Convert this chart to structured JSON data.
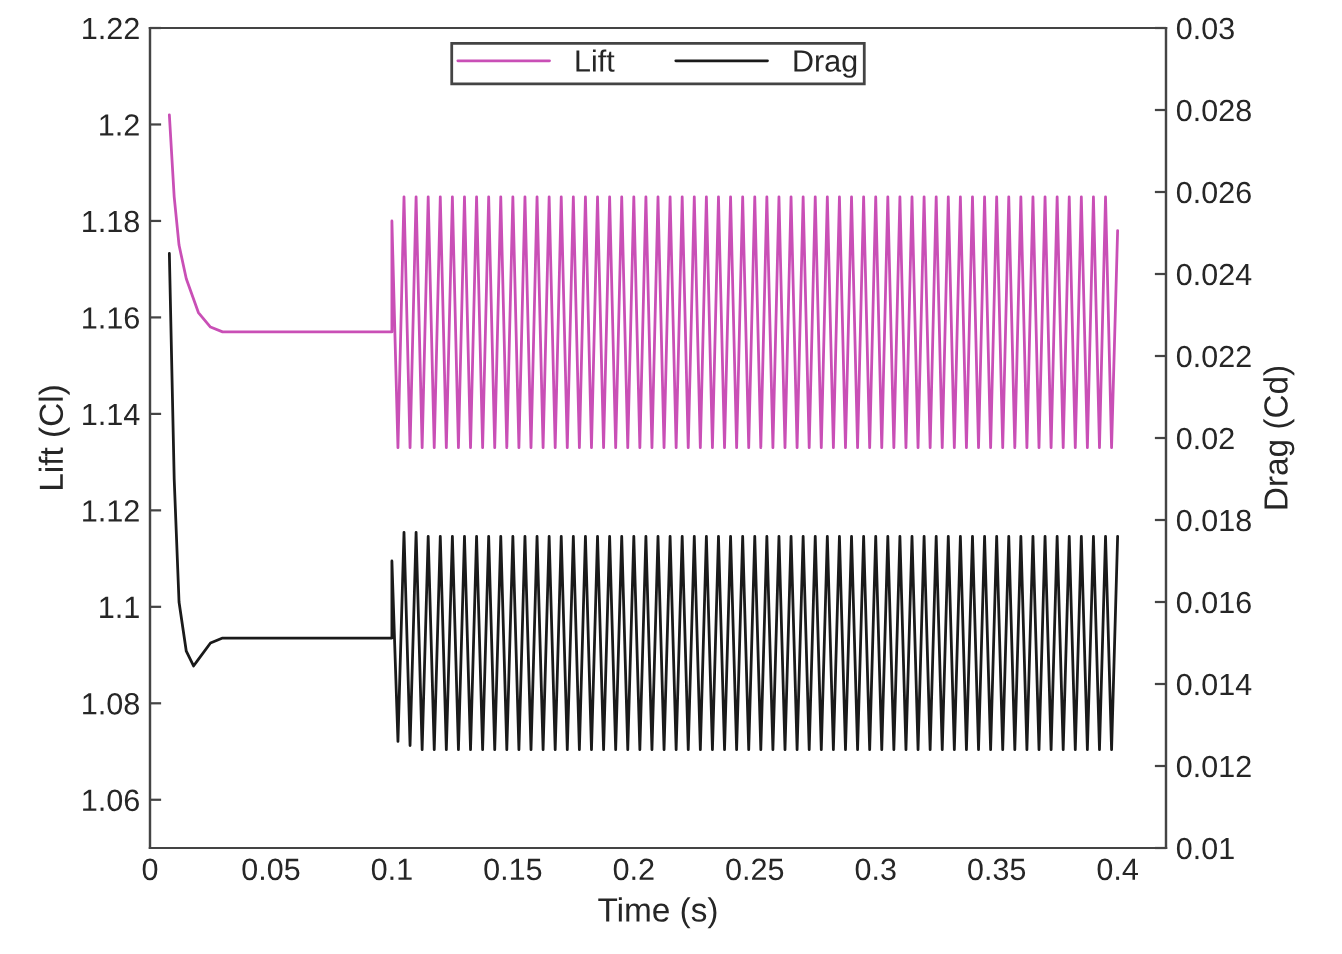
{
  "chart_data": {
    "type": "line",
    "xlabel": "Time (s)",
    "ylabel": "Lift (Cl)",
    "y2label": "Drag (Cd)",
    "xlim": [
      0,
      0.42
    ],
    "xticks": [
      0,
      0.05,
      0.1,
      0.15,
      0.2,
      0.25,
      0.3,
      0.35,
      0.4
    ],
    "ylim": [
      1.05,
      1.22
    ],
    "yticks": [
      1.06,
      1.08,
      1.1,
      1.12,
      1.14,
      1.16,
      1.18,
      1.2,
      1.22
    ],
    "y2lim": [
      0.01,
      0.03
    ],
    "y2ticks": [
      0.01,
      0.012,
      0.014,
      0.016,
      0.018,
      0.02,
      0.022,
      0.024,
      0.026,
      0.028,
      0.03
    ],
    "legend": "top",
    "grid": false,
    "marker": "none",
    "line_style": "solid",
    "series": [
      {
        "name": "Lift",
        "color": "#c94fb6",
        "x": [
          0.008,
          0.01,
          0.012,
          0.015,
          0.02,
          0.025,
          0.03,
          0.1,
          0.1,
          0.1025,
          0.105,
          0.1075,
          0.11,
          0.1125,
          0.115,
          0.1175,
          0.12,
          0.1225,
          0.125,
          0.1275,
          0.13,
          0.1325,
          0.135,
          0.1375,
          0.14,
          0.1425,
          0.145,
          0.1475,
          0.15,
          0.1525,
          0.155,
          0.1575,
          0.16,
          0.1625,
          0.165,
          0.1675,
          0.17,
          0.1725,
          0.175,
          0.1775,
          0.18,
          0.1825,
          0.185,
          0.1875,
          0.19,
          0.1925,
          0.195,
          0.1975,
          0.2,
          0.2025,
          0.205,
          0.2075,
          0.21,
          0.2125,
          0.215,
          0.2175,
          0.22,
          0.2225,
          0.225,
          0.2275,
          0.23,
          0.2325,
          0.235,
          0.2375,
          0.24,
          0.2425,
          0.245,
          0.2475,
          0.25,
          0.2525,
          0.255,
          0.2575,
          0.26,
          0.2625,
          0.265,
          0.2675,
          0.27,
          0.2725,
          0.275,
          0.2775,
          0.28,
          0.2825,
          0.285,
          0.2875,
          0.29,
          0.2925,
          0.295,
          0.2975,
          0.3,
          0.3025,
          0.305,
          0.3075,
          0.31,
          0.3125,
          0.315,
          0.3175,
          0.32,
          0.3225,
          0.325,
          0.3275,
          0.33,
          0.3325,
          0.335,
          0.3375,
          0.34,
          0.3425,
          0.345,
          0.3475,
          0.35,
          0.3525,
          0.355,
          0.3575,
          0.36,
          0.3625,
          0.365,
          0.3675,
          0.37,
          0.3725,
          0.375,
          0.3775,
          0.38,
          0.3825,
          0.385,
          0.3875,
          0.39,
          0.3925,
          0.395,
          0.3975,
          0.4
        ],
        "values": [
          1.202,
          1.185,
          1.175,
          1.168,
          1.161,
          1.158,
          1.157,
          1.157,
          1.18,
          1.133,
          1.185,
          1.133,
          1.185,
          1.133,
          1.185,
          1.133,
          1.185,
          1.133,
          1.185,
          1.133,
          1.185,
          1.133,
          1.185,
          1.133,
          1.185,
          1.133,
          1.185,
          1.133,
          1.185,
          1.133,
          1.185,
          1.133,
          1.185,
          1.133,
          1.185,
          1.133,
          1.185,
          1.133,
          1.185,
          1.133,
          1.185,
          1.133,
          1.185,
          1.133,
          1.185,
          1.133,
          1.185,
          1.133,
          1.185,
          1.133,
          1.185,
          1.133,
          1.185,
          1.133,
          1.185,
          1.133,
          1.185,
          1.133,
          1.185,
          1.133,
          1.185,
          1.133,
          1.185,
          1.133,
          1.185,
          1.133,
          1.185,
          1.133,
          1.185,
          1.133,
          1.185,
          1.133,
          1.185,
          1.133,
          1.185,
          1.133,
          1.185,
          1.133,
          1.185,
          1.133,
          1.185,
          1.133,
          1.185,
          1.133,
          1.185,
          1.133,
          1.185,
          1.133,
          1.185,
          1.133,
          1.185,
          1.133,
          1.185,
          1.133,
          1.185,
          1.133,
          1.185,
          1.133,
          1.185,
          1.133,
          1.185,
          1.133,
          1.185,
          1.133,
          1.185,
          1.133,
          1.185,
          1.133,
          1.185,
          1.133,
          1.185,
          1.133,
          1.185,
          1.133,
          1.185,
          1.133,
          1.185,
          1.133,
          1.185,
          1.133,
          1.185,
          1.133,
          1.185,
          1.133,
          1.185,
          1.133,
          1.185,
          1.133,
          1.178
        ]
      },
      {
        "name": "Drag",
        "color": "#1a1a1a",
        "axis": "y2",
        "x": [
          0.008,
          0.01,
          0.012,
          0.015,
          0.018,
          0.02,
          0.025,
          0.03,
          0.1,
          0.1,
          0.1025,
          0.105,
          0.1075,
          0.11,
          0.1125,
          0.115,
          0.1175,
          0.12,
          0.1225,
          0.125,
          0.1275,
          0.13,
          0.1325,
          0.135,
          0.1375,
          0.14,
          0.1425,
          0.145,
          0.1475,
          0.15,
          0.1525,
          0.155,
          0.1575,
          0.16,
          0.1625,
          0.165,
          0.1675,
          0.17,
          0.1725,
          0.175,
          0.1775,
          0.18,
          0.1825,
          0.185,
          0.1875,
          0.19,
          0.1925,
          0.195,
          0.1975,
          0.2,
          0.2025,
          0.205,
          0.2075,
          0.21,
          0.2125,
          0.215,
          0.2175,
          0.22,
          0.2225,
          0.225,
          0.2275,
          0.23,
          0.2325,
          0.235,
          0.2375,
          0.24,
          0.2425,
          0.245,
          0.2475,
          0.25,
          0.2525,
          0.255,
          0.2575,
          0.26,
          0.2625,
          0.265,
          0.2675,
          0.27,
          0.2725,
          0.275,
          0.2775,
          0.28,
          0.2825,
          0.285,
          0.2875,
          0.29,
          0.2925,
          0.295,
          0.2975,
          0.3,
          0.3025,
          0.305,
          0.3075,
          0.31,
          0.3125,
          0.315,
          0.3175,
          0.32,
          0.3225,
          0.325,
          0.3275,
          0.33,
          0.3325,
          0.335,
          0.3375,
          0.34,
          0.3425,
          0.345,
          0.3475,
          0.35,
          0.3525,
          0.355,
          0.3575,
          0.36,
          0.3625,
          0.365,
          0.3675,
          0.37,
          0.3725,
          0.375,
          0.3775,
          0.38,
          0.3825,
          0.385,
          0.3875,
          0.39,
          0.3925,
          0.395,
          0.3975,
          0.4
        ],
        "values": [
          0.0245,
          0.019,
          0.016,
          0.0148,
          0.01444,
          0.0146,
          0.015,
          0.01512,
          0.01512,
          0.017,
          0.0126,
          0.0177,
          0.0125,
          0.0177,
          0.0124,
          0.0176,
          0.0124,
          0.0176,
          0.0124,
          0.0176,
          0.0124,
          0.0176,
          0.0124,
          0.0176,
          0.0124,
          0.0176,
          0.0124,
          0.0176,
          0.0124,
          0.0176,
          0.0124,
          0.0176,
          0.0124,
          0.0176,
          0.0124,
          0.0176,
          0.0124,
          0.0176,
          0.0124,
          0.0176,
          0.0124,
          0.0176,
          0.0124,
          0.0176,
          0.0124,
          0.0176,
          0.0124,
          0.0176,
          0.0124,
          0.0176,
          0.0124,
          0.0176,
          0.0124,
          0.0176,
          0.0124,
          0.0176,
          0.0124,
          0.0176,
          0.0124,
          0.0176,
          0.0124,
          0.0176,
          0.0124,
          0.0176,
          0.0124,
          0.0176,
          0.0124,
          0.0176,
          0.0124,
          0.0176,
          0.0124,
          0.0176,
          0.0124,
          0.0176,
          0.0124,
          0.0176,
          0.0124,
          0.0176,
          0.0124,
          0.0176,
          0.0124,
          0.0176,
          0.0124,
          0.0176,
          0.0124,
          0.0176,
          0.0124,
          0.0176,
          0.0124,
          0.0176,
          0.0124,
          0.0176,
          0.0124,
          0.0176,
          0.0124,
          0.0176,
          0.0124,
          0.0176,
          0.0124,
          0.0176,
          0.0124,
          0.0176,
          0.0124,
          0.0176,
          0.0124,
          0.0176,
          0.0124,
          0.0176,
          0.0124,
          0.0176,
          0.0124,
          0.0176,
          0.0124,
          0.0176,
          0.0124,
          0.0176,
          0.0124,
          0.0176,
          0.0124,
          0.0176,
          0.0124,
          0.0176,
          0.0124,
          0.0176,
          0.0124,
          0.0176,
          0.0124,
          0.0176,
          0.0124,
          0.0176
        ]
      }
    ]
  }
}
